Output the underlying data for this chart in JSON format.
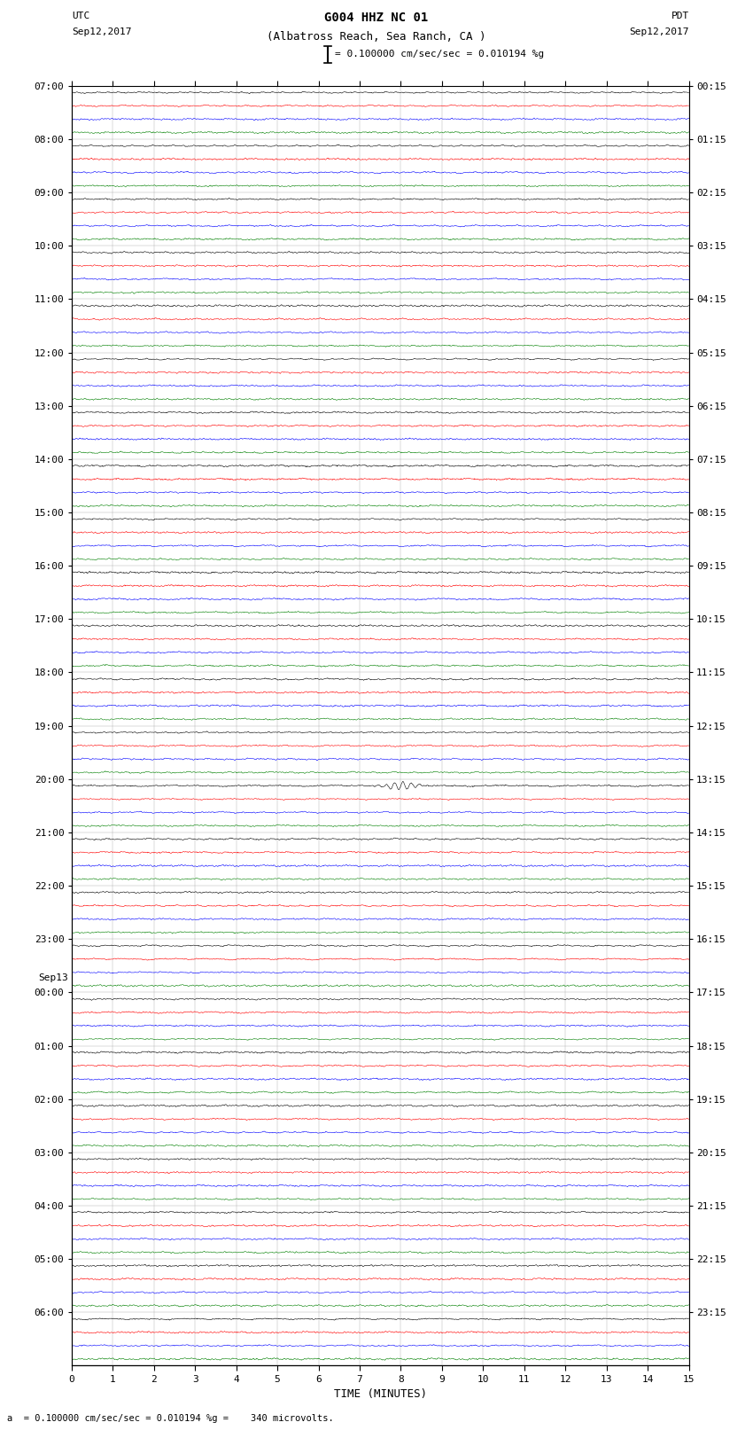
{
  "title_line1": "G004 HHZ NC 01",
  "title_line2": "(Albatross Reach, Sea Ranch, CA )",
  "scale_label": "= 0.100000 cm/sec/sec = 0.010194 %g",
  "bottom_label": "a  = 0.100000 cm/sec/sec = 0.010194 %g =    340 microvolts.",
  "utc_label": "UTC",
  "utc_date": "Sep12,2017",
  "pdt_label": "PDT",
  "pdt_date": "Sep12,2017",
  "xlabel": "TIME (MINUTES)",
  "left_hour_labels": [
    "07:00",
    "08:00",
    "09:00",
    "10:00",
    "11:00",
    "12:00",
    "13:00",
    "14:00",
    "15:00",
    "16:00",
    "17:00",
    "18:00",
    "19:00",
    "20:00",
    "21:00",
    "22:00",
    "23:00",
    "00:00",
    "01:00",
    "02:00",
    "03:00",
    "04:00",
    "05:00",
    "06:00"
  ],
  "right_hour_labels": [
    "00:15",
    "01:15",
    "02:15",
    "03:15",
    "04:15",
    "05:15",
    "06:15",
    "07:15",
    "08:15",
    "09:15",
    "10:15",
    "11:15",
    "12:15",
    "13:15",
    "14:15",
    "15:15",
    "16:15",
    "17:15",
    "18:15",
    "19:15",
    "20:15",
    "21:15",
    "22:15",
    "23:15"
  ],
  "sep13_row": 17,
  "colors": [
    "black",
    "red",
    "blue",
    "green"
  ],
  "n_hours": 24,
  "n_traces_per_hour": 4,
  "xmin": 0,
  "xmax": 15,
  "background": "white",
  "figsize": [
    8.5,
    16.13
  ],
  "dpi": 100,
  "trace_amplitude": 0.38,
  "noise_base": 0.25,
  "linewidth": 0.4
}
